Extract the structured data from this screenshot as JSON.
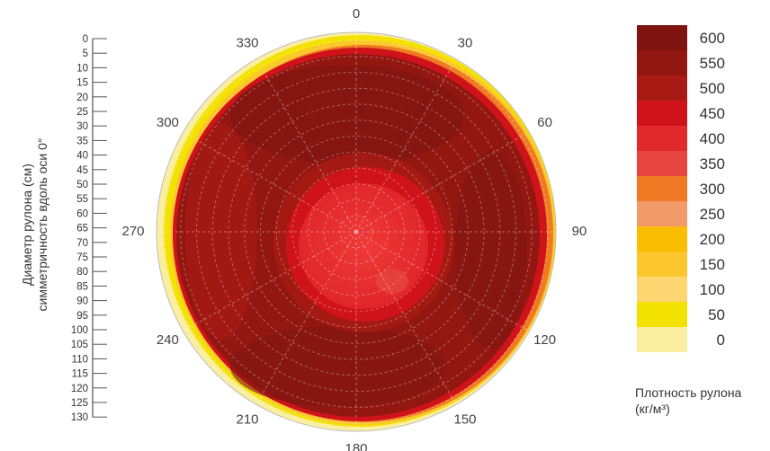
{
  "chart_data": {
    "type": "heatmap",
    "subtype": "polar",
    "angle_labels": [
      "0",
      "30",
      "60",
      "90",
      "120",
      "150",
      "180",
      "210",
      "240",
      "270",
      "300",
      "330"
    ],
    "radial_axis": {
      "label_lines": [
        "Диаметр рулона (см)",
        "симметричность вдоль оси 0°"
      ],
      "ticks": [
        "0",
        "5",
        "10",
        "15",
        "20",
        "25",
        "30",
        "35",
        "40",
        "45",
        "50",
        "55",
        "60",
        "65",
        "70",
        "75",
        "80",
        "85",
        "90",
        "95",
        "100",
        "105",
        "110",
        "115",
        "120",
        "125",
        "130"
      ]
    },
    "legend": {
      "title_lines": [
        "Плотность рулона",
        "(кг/м³)"
      ],
      "entries": [
        {
          "label": "600",
          "color": "#7e1510"
        },
        {
          "label": "550",
          "color": "#931711"
        },
        {
          "label": "500",
          "color": "#a81a14"
        },
        {
          "label": "450",
          "color": "#d0131a"
        },
        {
          "label": "400",
          "color": "#e02a2b"
        },
        {
          "label": "350",
          "color": "#e64540"
        },
        {
          "label": "300",
          "color": "#ef7a23"
        },
        {
          "label": "250",
          "color": "#f29a6a"
        },
        {
          "label": "200",
          "color": "#fbbd02"
        },
        {
          "label": "150",
          "color": "#fcc62e"
        },
        {
          "label": "100",
          "color": "#fdd671"
        },
        {
          "label": "50",
          "color": "#f3e100"
        },
        {
          "label": "0",
          "color": "#faeea0"
        }
      ]
    },
    "grid": true
  }
}
